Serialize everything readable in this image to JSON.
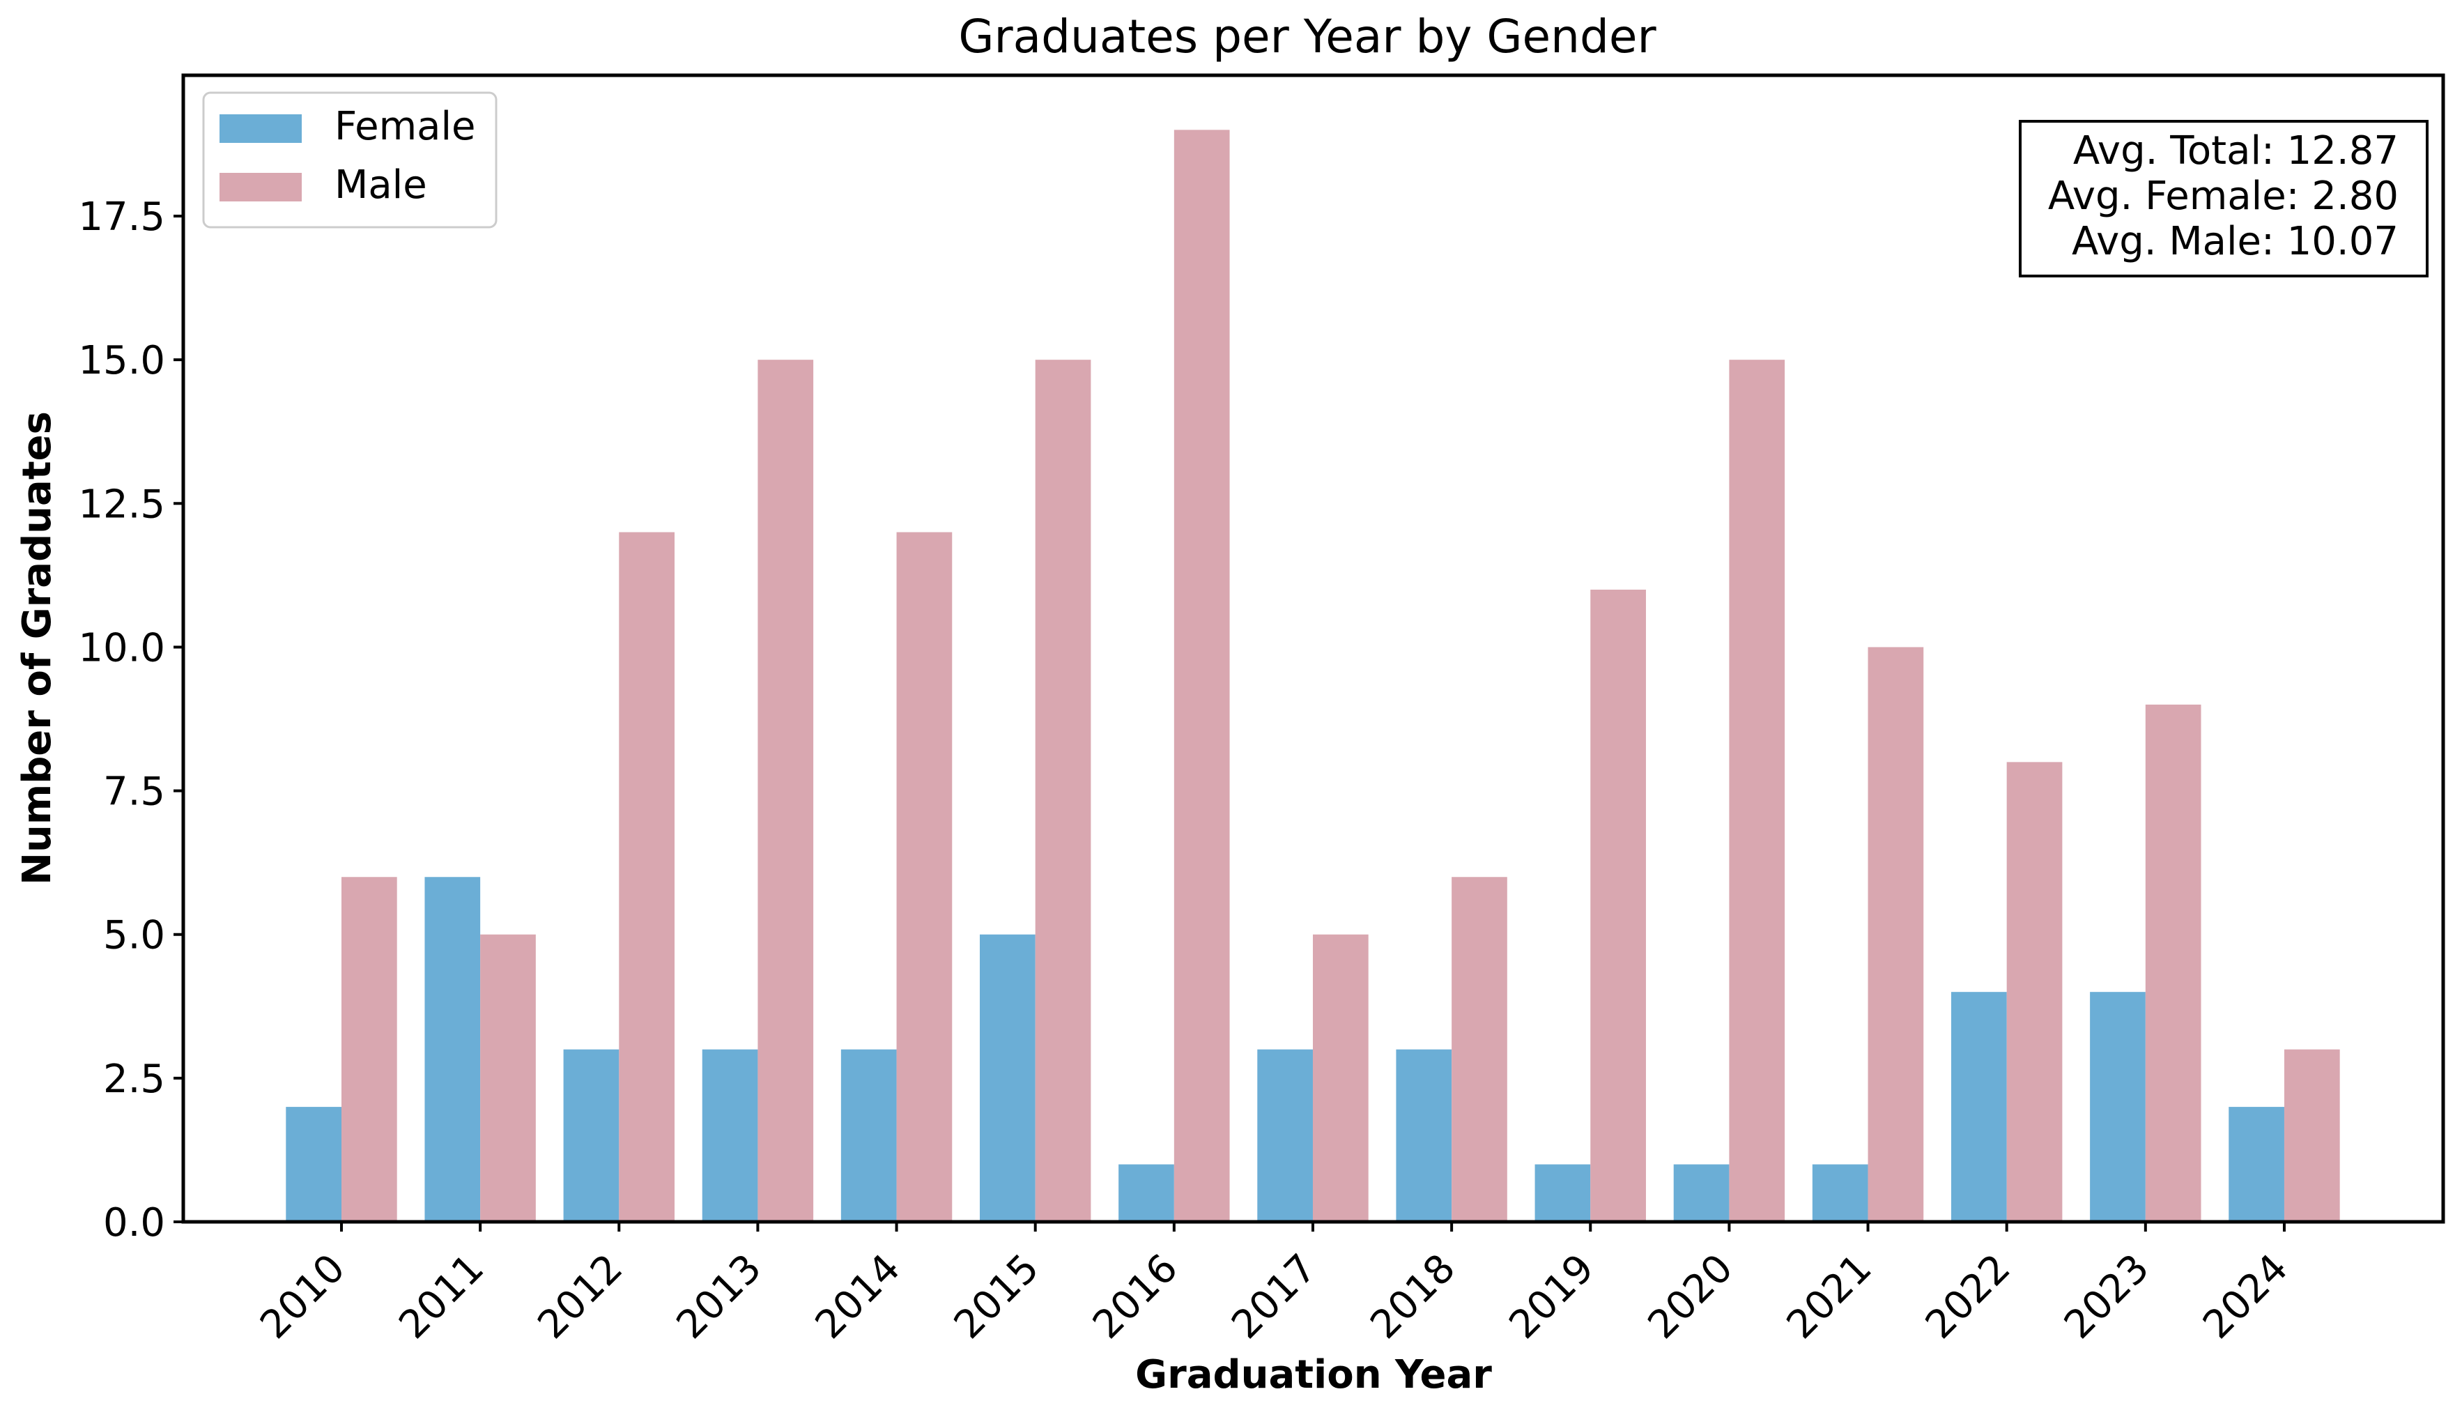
{
  "chart_data": {
    "type": "bar",
    "title": "Graduates per Year by Gender",
    "xlabel": "Graduation Year",
    "ylabel": "Number of Graduates",
    "categories": [
      "2010",
      "2011",
      "2012",
      "2013",
      "2014",
      "2015",
      "2016",
      "2017",
      "2018",
      "2019",
      "2020",
      "2021",
      "2022",
      "2023",
      "2024"
    ],
    "series": [
      {
        "name": "Female",
        "color": "#6baed6",
        "values": [
          2,
          6,
          3,
          3,
          3,
          5,
          1,
          3,
          3,
          1,
          1,
          1,
          4,
          4,
          2
        ]
      },
      {
        "name": "Male",
        "color": "#d9a7b0",
        "values": [
          6,
          5,
          12,
          15,
          12,
          15,
          19,
          5,
          6,
          11,
          15,
          10,
          8,
          9,
          3
        ]
      }
    ],
    "ylim": [
      0,
      19.95
    ],
    "yticks": [
      "0.0",
      "2.5",
      "5.0",
      "7.5",
      "10.0",
      "12.5",
      "15.0",
      "17.5"
    ],
    "grid": false,
    "legend_position": "top-left",
    "annotation": {
      "position": "top-right",
      "lines": [
        "Avg. Total: 12.87",
        "Avg. Female: 2.80",
        "Avg. Male: 10.07"
      ]
    }
  }
}
